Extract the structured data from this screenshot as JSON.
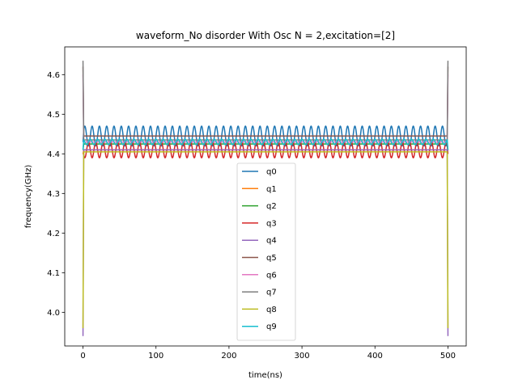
{
  "chart_data": {
    "type": "line",
    "title": "waveform_No disorder With Osc N =  2,excitation=[2]",
    "xlabel": "time(ns)",
    "ylabel": "frequency(GHz)",
    "xlim": [
      -25,
      525
    ],
    "ylim": [
      3.915,
      4.67
    ],
    "xticks": [
      0,
      100,
      200,
      300,
      400,
      500
    ],
    "yticks": [
      4.0,
      4.1,
      4.2,
      4.3,
      4.4,
      4.5,
      4.6
    ],
    "xtick_labels": [
      "0",
      "100",
      "200",
      "300",
      "400",
      "500"
    ],
    "ytick_labels": [
      "4.0",
      "4.1",
      "4.2",
      "4.3",
      "4.4",
      "4.5",
      "4.6"
    ],
    "grid": false,
    "legend_position": "lower center",
    "time_range": [
      0,
      500
    ],
    "series": [
      {
        "name": "q0",
        "color": "#1f77b4",
        "base": 4.445,
        "amplitude": 0.025,
        "period": 10,
        "phase": 0,
        "edge_start": 4.43,
        "edge_end": 4.43
      },
      {
        "name": "q1",
        "color": "#ff7f0e",
        "base": 4.41,
        "amplitude": 0.0,
        "period": 10,
        "phase": 0,
        "edge_start": 4.4,
        "edge_end": 4.4
      },
      {
        "name": "q2",
        "color": "#2ca02c",
        "base": 4.425,
        "amplitude": 0.0,
        "period": 10,
        "phase": 0,
        "edge_start": 4.41,
        "edge_end": 4.41
      },
      {
        "name": "q3",
        "color": "#d62728",
        "base": 4.41,
        "amplitude": 0.02,
        "period": 10,
        "phase": 3.14159,
        "edge_start": 4.4,
        "edge_end": 4.4
      },
      {
        "name": "q4",
        "color": "#9467bd",
        "base": 4.41,
        "amplitude": 0.0,
        "period": 10,
        "phase": 0,
        "edge_start": 3.94,
        "edge_end": 3.94
      },
      {
        "name": "q5",
        "color": "#8c564b",
        "base": 4.445,
        "amplitude": 0.0,
        "period": 10,
        "phase": 0,
        "edge_start": 4.62,
        "edge_end": 4.62
      },
      {
        "name": "q6",
        "color": "#e377c2",
        "base": 4.43,
        "amplitude": 0.0,
        "period": 10,
        "phase": 0,
        "edge_start": 4.6,
        "edge_end": 4.6
      },
      {
        "name": "q7",
        "color": "#7f7f7f",
        "base": 4.435,
        "amplitude": 0.0,
        "period": 10,
        "phase": 0,
        "edge_start": 4.635,
        "edge_end": 4.635
      },
      {
        "name": "q8",
        "color": "#bcbd22",
        "base": 4.405,
        "amplitude": 0.0,
        "period": 10,
        "phase": 0,
        "edge_start": 3.96,
        "edge_end": 3.96
      },
      {
        "name": "q9",
        "color": "#17becf",
        "base": 4.43,
        "amplitude": 0.007,
        "period": 10,
        "phase": 1.5708,
        "edge_start": 4.41,
        "edge_end": 4.41
      }
    ]
  }
}
